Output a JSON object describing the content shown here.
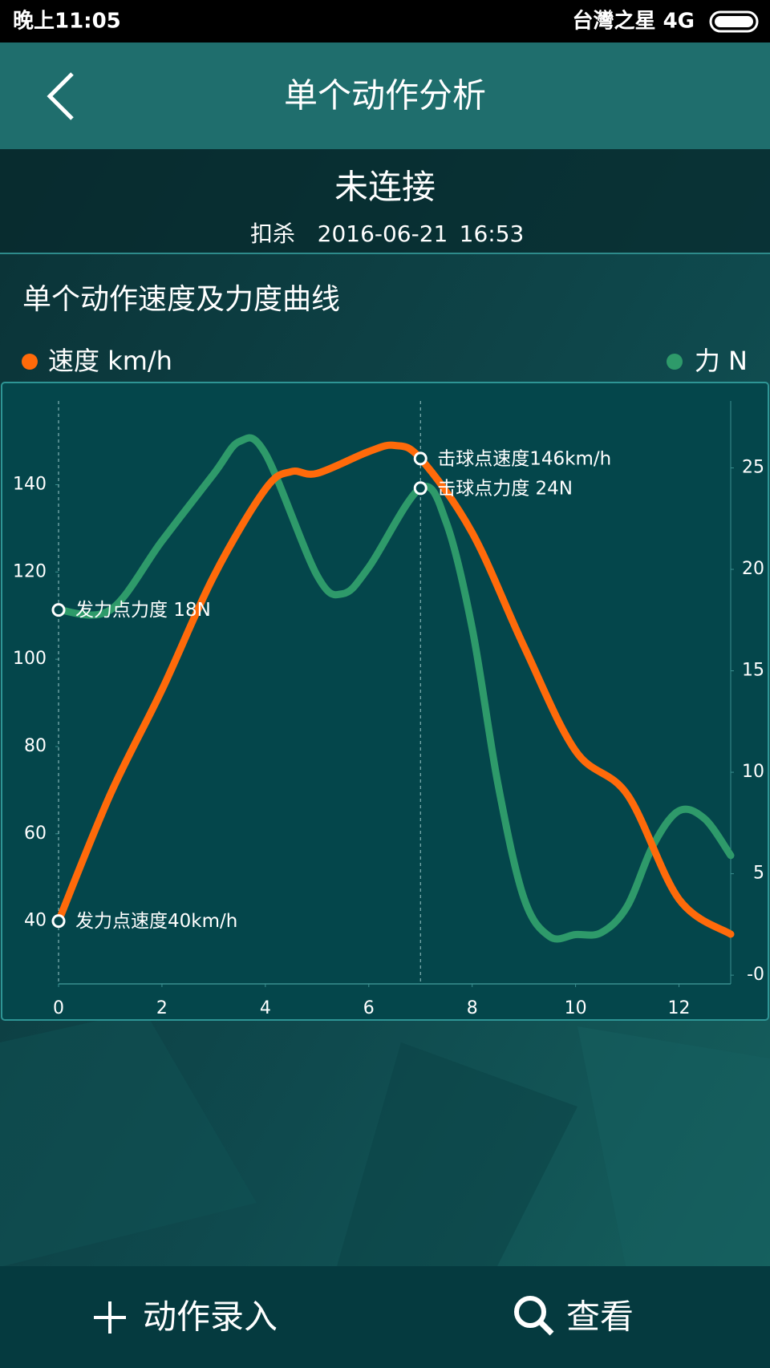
{
  "status_bar": {
    "time": "晚上11:05",
    "carrier": "台灣之星 4G"
  },
  "header": {
    "title": "单个动作分析"
  },
  "info": {
    "status": "未连接",
    "action": "扣杀",
    "date": "2016-06-21",
    "time": "16:53"
  },
  "chart_data": {
    "type": "line",
    "title": "单个动作速度及力度曲线",
    "xlim": [
      0,
      13
    ],
    "xticks": [
      0,
      2,
      4,
      6,
      8,
      10,
      12
    ],
    "ylim": [
      25.6,
      159.2
    ],
    "yticks": [
      40,
      60,
      80,
      100,
      120,
      140
    ],
    "y2lim": [
      -0.43,
      28.3
    ],
    "y2ticks": [
      {
        "value": 0,
        "label": "-0"
      },
      5,
      10,
      15,
      20,
      25
    ],
    "series": [
      {
        "name": "速度 km/h",
        "color": "#ff6a0a",
        "axis": "y",
        "x": [
          0,
          1,
          2,
          3,
          4,
          4.5,
          5,
          6,
          6.5,
          7,
          8,
          9,
          10,
          11,
          12,
          13
        ],
        "values": [
          40,
          69,
          93,
          119,
          139,
          143,
          142.6,
          147.6,
          149,
          146,
          129,
          103,
          79,
          69,
          45,
          37
        ]
      },
      {
        "name": "力 N",
        "color": "#2e9a6a",
        "axis": "y2",
        "x": [
          0,
          1,
          2,
          3,
          3.5,
          4,
          5,
          5.5,
          6,
          7,
          7.5,
          8,
          8.5,
          9,
          9.5,
          10,
          10.5,
          11,
          11.5,
          12,
          12.5,
          13
        ],
        "values": [
          18,
          18,
          21.4,
          24.7,
          26.3,
          25.7,
          19.7,
          18.8,
          20.1,
          24,
          22.3,
          17.1,
          9.4,
          3.8,
          1.9,
          2.0,
          2.1,
          3.4,
          6.4,
          8.1,
          7.7,
          5.9
        ]
      }
    ],
    "annotations": [
      {
        "text": "发力点速度40km/h",
        "x": 0,
        "value": 40,
        "axis": "y"
      },
      {
        "text": "发力点力度 18N",
        "x": 0,
        "value": 18,
        "axis": "y2"
      },
      {
        "text": "击球点速度146km/h",
        "x": 7,
        "value": 146,
        "axis": "y"
      },
      {
        "text": "击球点力度 24N",
        "x": 7,
        "value": 24,
        "axis": "y2"
      }
    ]
  },
  "buttons": {
    "record": "动作录入",
    "view": "查看"
  }
}
